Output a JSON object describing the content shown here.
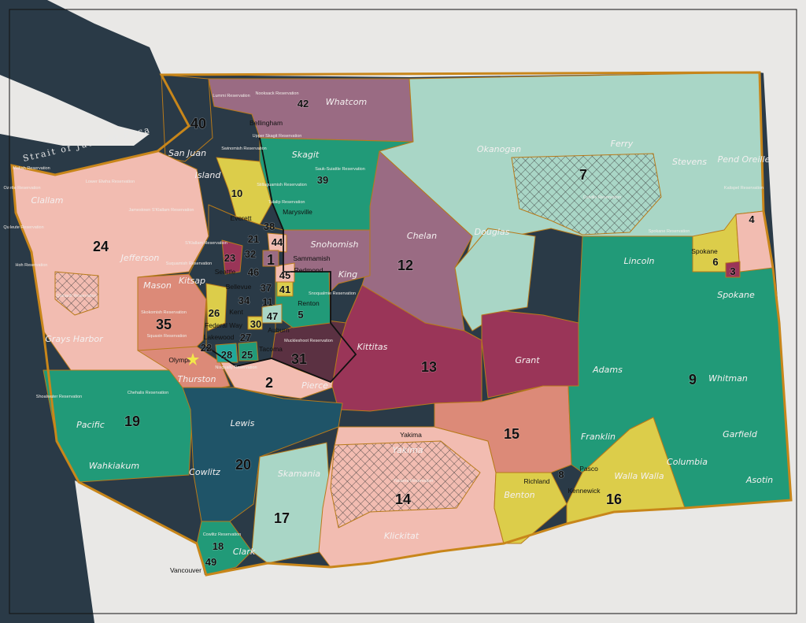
{
  "map": {
    "colors": {
      "water": "#2a3a47",
      "land_outside": "#e9e8e6",
      "state_border": "#c8861a",
      "pink": "#f2bcb1",
      "salmon": "#dc8a78",
      "green": "#219a78",
      "mint": "#a9d6c6",
      "mauve": "#9a6b83",
      "crimson": "#9a3558",
      "plum": "#5b3142",
      "teal_dark": "#1f5468",
      "yellow": "#dccd4a",
      "navy": "#2a3a47"
    },
    "water_labels": [
      "Strait of Juan de Fuca"
    ],
    "districts": [
      "1",
      "2",
      "3",
      "4",
      "5",
      "6",
      "7",
      "8",
      "9",
      "10",
      "11",
      "12",
      "13",
      "14",
      "15",
      "16",
      "17",
      "18",
      "19",
      "20",
      "21",
      "22",
      "23",
      "24",
      "25",
      "26",
      "27",
      "28",
      "30",
      "31",
      "32",
      "34",
      "35",
      "37",
      "38",
      "39",
      "40",
      "41",
      "42",
      "44",
      "45",
      "46",
      "47",
      "49"
    ],
    "counties": [
      "Whatcom",
      "San Juan",
      "Skagit",
      "Island",
      "Okanogan",
      "Ferry",
      "Stevens",
      "Pend Oreille",
      "Clallam",
      "Jefferson",
      "Snohomish",
      "Chelan",
      "Douglas",
      "King",
      "Lincoln",
      "Spokane",
      "Mason",
      "Kitsap",
      "Grays Harbor",
      "Kittitas",
      "Grant",
      "Adams",
      "Whitman",
      "Thurston",
      "Pierce",
      "Lewis",
      "Pacific",
      "Franklin",
      "Garfield",
      "Columbia",
      "Wahkiakum",
      "Cowlitz",
      "Yakima",
      "Skamania",
      "Benton",
      "Walla Walla",
      "Asotin",
      "Klickitat",
      "Clark"
    ],
    "cities": [
      "Bellingham",
      "Everett",
      "Marysville",
      "Seattle",
      "Bellevue",
      "Renton",
      "Kent",
      "Federal Way",
      "Auburn",
      "Tacoma",
      "Lakewood",
      "Olympia",
      "Spokane",
      "Yakima",
      "Richland",
      "Pasco",
      "Kennewick",
      "Vancouver",
      "Redmond",
      "Sammamish"
    ],
    "reservations": [
      "Lummi Reservation",
      "Nooksack Reservation",
      "Upper Skagit Reservation",
      "Swinomish Reservation",
      "Sauk-Suiattle Reservation",
      "Stillaguamish Reservation",
      "Tulalip Reservation",
      "Colville Reservation",
      "Spokane Reservation",
      "Kalispel Reservation",
      "Makah Reservation",
      "Ozette Reservation",
      "Lower Elwha Reservation",
      "Jamestown S'Klallam Reservation",
      "Quileute Reservation",
      "Hoh Reservation",
      "Quinault Reservation",
      "Skokomish Reservation",
      "Squaxin Reservation",
      "Chehalis Reservation",
      "Shoalwater Reservation",
      "Muckleshoot Reservation",
      "Snoqualmie Reservation",
      "Nisqually Reservation",
      "S'Klallam Reservation",
      "Suquamish Reservation",
      "Yakama Reservation",
      "Cowlitz Reservation"
    ]
  }
}
